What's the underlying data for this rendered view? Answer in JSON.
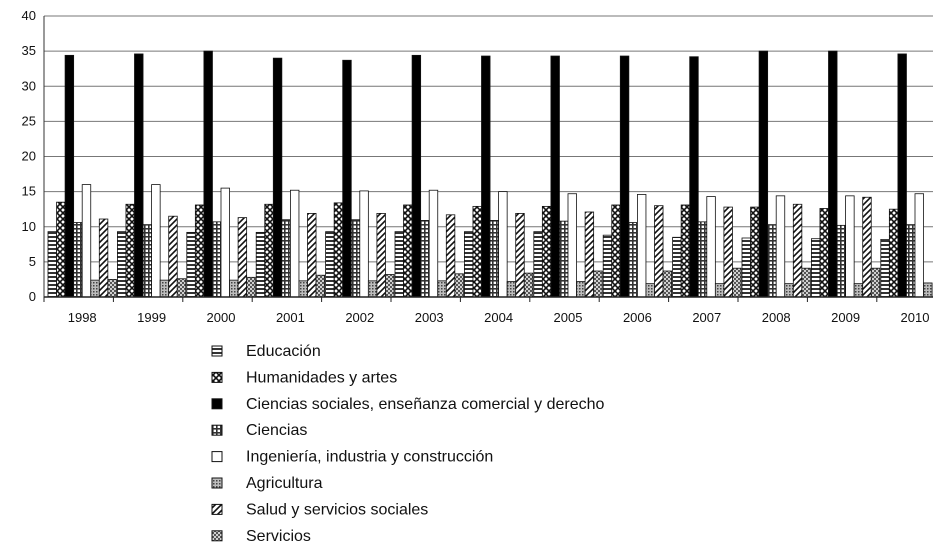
{
  "chart_data": {
    "type": "bar",
    "title": "",
    "xlabel": "",
    "ylabel": "",
    "ylim": [
      0,
      40
    ],
    "y_ticks": [
      "0",
      "5",
      "10",
      "15",
      "20",
      "25",
      "30",
      "35",
      "40"
    ],
    "grid": true,
    "legend_position": "bottom",
    "categories": [
      "1998",
      "1999",
      "2000",
      "2001",
      "2002",
      "2003",
      "2004",
      "2005",
      "2006",
      "2007",
      "2008",
      "2009",
      "2010"
    ],
    "series": [
      {
        "name": "Educación",
        "pattern": "horizontal-lines",
        "values": [
          9.3,
          9.3,
          9.2,
          9.2,
          9.3,
          9.3,
          9.3,
          9.3,
          8.8,
          8.5,
          8.4,
          8.3,
          8.2
        ]
      },
      {
        "name": "Humanidades y artes",
        "pattern": "crosshatch",
        "values": [
          13.5,
          13.2,
          13.1,
          13.2,
          13.4,
          13.1,
          12.9,
          12.9,
          13.1,
          13.1,
          12.8,
          12.6,
          12.5
        ]
      },
      {
        "name": "Ciencias sociales, enseñanza comercial y derecho",
        "pattern": "solid-black",
        "values": [
          34.4,
          34.6,
          35.0,
          34.0,
          33.7,
          34.4,
          34.3,
          34.3,
          34.3,
          34.2,
          35.0,
          35.0,
          34.6
        ]
      },
      {
        "name": "Ciencias",
        "pattern": "grid",
        "values": [
          10.6,
          10.3,
          10.7,
          11.0,
          11.0,
          10.9,
          10.9,
          10.8,
          10.6,
          10.7,
          10.3,
          10.2,
          10.3
        ]
      },
      {
        "name": "Ingeniería, industria y construcción",
        "pattern": "white",
        "values": [
          16.0,
          16.0,
          15.5,
          15.2,
          15.1,
          15.2,
          15.0,
          14.7,
          14.6,
          14.3,
          14.4,
          14.4,
          14.7
        ]
      },
      {
        "name": "Agricultura",
        "pattern": "dots",
        "values": [
          2.4,
          2.4,
          2.4,
          2.3,
          2.3,
          2.3,
          2.2,
          2.2,
          1.9,
          1.9,
          1.9,
          1.9,
          2.0
        ]
      },
      {
        "name": "Salud y servicios sociales",
        "pattern": "diagonal",
        "values": [
          11.1,
          11.5,
          11.3,
          11.9,
          11.9,
          11.7,
          11.9,
          12.1,
          13.0,
          12.8,
          13.2,
          14.2,
          13.9
        ]
      },
      {
        "name": "Servicios",
        "pattern": "checker",
        "values": [
          2.5,
          2.6,
          2.8,
          3.1,
          3.2,
          3.3,
          3.4,
          3.7,
          3.7,
          4.1,
          4.1,
          4.1,
          4.1
        ]
      }
    ]
  }
}
